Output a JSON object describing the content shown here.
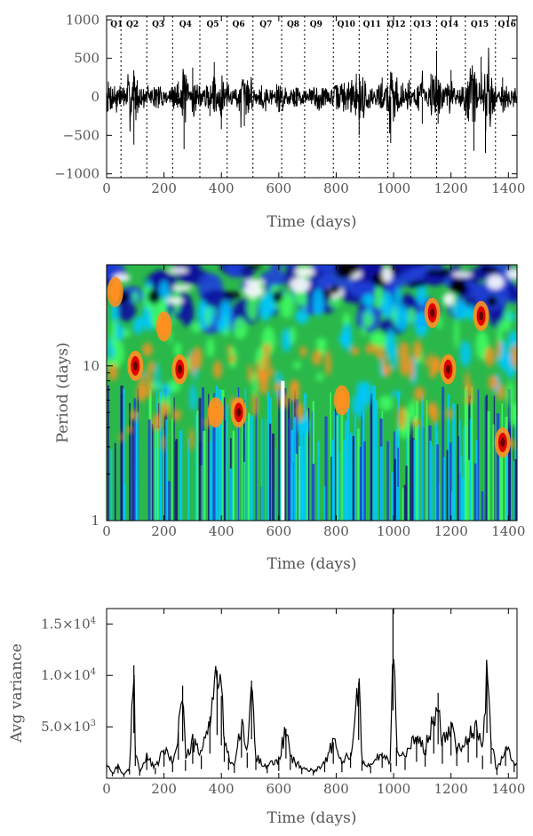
{
  "chart_data": [
    {
      "type": "line",
      "xlabel": "Time (days)",
      "ylabel": "",
      "xlim": [
        0,
        1430
      ],
      "ylim": [
        -1050,
        1050
      ],
      "x_ticks": [
        0,
        200,
        400,
        600,
        800,
        1000,
        1200,
        1400
      ],
      "x_tick_labels": [
        "0",
        "200",
        "400",
        "600",
        "800",
        "1000",
        "1200",
        "1400"
      ],
      "y_ticks": [
        1000,
        500,
        0,
        -500,
        -1000
      ],
      "y_tick_labels": [
        "1000",
        "500",
        "0",
        "−500",
        "−1000"
      ],
      "quarter_boundaries": [
        50,
        140,
        230,
        325,
        420,
        510,
        610,
        690,
        790,
        880,
        980,
        1060,
        1150,
        1250,
        1355
      ],
      "quarters": [
        "Q1",
        "Q2",
        "Q3",
        "Q4",
        "Q5",
        "Q6",
        "Q7",
        "Q8",
        "Q9",
        "Q10",
        "Q11",
        "Q12",
        "Q13",
        "Q14",
        "Q15",
        "Q16"
      ],
      "quarter_label_x": [
        35,
        90,
        180,
        275,
        370,
        460,
        555,
        650,
        730,
        835,
        925,
        1010,
        1100,
        1195,
        1300,
        1395
      ],
      "series": [
        {
          "x": [
            0,
            60,
            95,
            120,
            180,
            250,
            270,
            300,
            360,
            375,
            400,
            420,
            480,
            540,
            600,
            660,
            740,
            800,
            870,
            880,
            960,
            990,
            1050,
            1100,
            1130,
            1150,
            1155,
            1200,
            1280,
            1305,
            1320,
            1380,
            1430
          ],
          "y": [
            250,
            120,
            -620,
            80,
            -150,
            200,
            -680,
            380,
            -250,
            450,
            -420,
            200,
            -380,
            150,
            -200,
            120,
            -180,
            150,
            300,
            -500,
            250,
            -600,
            180,
            -350,
            300,
            600,
            -350,
            350,
            -700,
            520,
            -730,
            250,
            -120
          ]
        }
      ]
    },
    {
      "type": "heatmap",
      "xlabel": "Time (days)",
      "ylabel": "Period (days)",
      "xlim": [
        0,
        1430
      ],
      "ylim": [
        1,
        45
      ],
      "yscale": "log",
      "x_ticks": [
        0,
        200,
        400,
        600,
        800,
        1000,
        1200,
        1400
      ],
      "x_tick_labels": [
        "0",
        "200",
        "400",
        "600",
        "800",
        "1000",
        "1200",
        "1400"
      ],
      "y_ticks": [
        10,
        1
      ],
      "y_tick_labels": [
        "10",
        "1"
      ],
      "colors": {
        "background": "#2ab84a",
        "low": "#2040d8",
        "lower": "#00c8ff",
        "mid": "#40ff60",
        "high": "#ff9020",
        "peak": "#e00000",
        "top": "#000000",
        "gap": "#ffffff"
      },
      "gap_x": [
        614
      ],
      "hotspots": [
        {
          "x": 255,
          "period": 9.5,
          "level": "peak"
        },
        {
          "x": 1190,
          "period": 9.5,
          "level": "peak"
        },
        {
          "x": 1135,
          "period": 22,
          "level": "peak"
        },
        {
          "x": 1305,
          "period": 21,
          "level": "peak"
        },
        {
          "x": 100,
          "period": 10,
          "level": "peak"
        },
        {
          "x": 460,
          "period": 5,
          "level": "peak"
        },
        {
          "x": 1380,
          "period": 3.2,
          "level": "peak"
        },
        {
          "x": 200,
          "period": 18,
          "level": "high"
        },
        {
          "x": 30,
          "period": 30,
          "level": "high"
        },
        {
          "x": 380,
          "period": 5,
          "level": "high"
        },
        {
          "x": 820,
          "period": 6,
          "level": "high"
        }
      ]
    },
    {
      "type": "line",
      "xlabel": "Time (days)",
      "ylabel": "Avg variance",
      "xlim": [
        0,
        1430
      ],
      "ylim": [
        0,
        16500
      ],
      "x_ticks": [
        0,
        200,
        400,
        600,
        800,
        1000,
        1200,
        1400
      ],
      "x_tick_labels": [
        "0",
        "200",
        "400",
        "600",
        "800",
        "1000",
        "1200",
        "1400"
      ],
      "y_ticks": [
        5000,
        10000,
        15000
      ],
      "y_tick_mantissa": [
        "5.0×10",
        "1.0×10",
        "1.5×10"
      ],
      "y_tick_exponent": [
        "3",
        "4",
        "4"
      ],
      "series": [
        {
          "x": [
            0,
            20,
            40,
            60,
            80,
            95,
            100,
            115,
            140,
            170,
            200,
            230,
            250,
            265,
            275,
            300,
            330,
            360,
            385,
            400,
            410,
            425,
            445,
            470,
            490,
            505,
            520,
            560,
            600,
            625,
            640,
            680,
            720,
            760,
            790,
            820,
            850,
            878,
            890,
            920,
            960,
            990,
            998,
            1010,
            1040,
            1080,
            1110,
            1140,
            1155,
            1170,
            1200,
            1220,
            1260,
            1290,
            1310,
            1325,
            1340,
            1360,
            1390,
            1420
          ],
          "y": [
            1500,
            500,
            1200,
            300,
            900,
            11000,
            3000,
            600,
            2000,
            1000,
            2800,
            1500,
            4500,
            9000,
            1800,
            3500,
            2200,
            6000,
            10500,
            8000,
            4000,
            2000,
            1300,
            5000,
            2500,
            9500,
            2000,
            1200,
            1800,
            4800,
            2000,
            1000,
            700,
            1500,
            3500,
            1500,
            2500,
            9300,
            1800,
            1200,
            2500,
            1500,
            16500,
            3000,
            2000,
            4000,
            2800,
            6000,
            8300,
            3500,
            5500,
            3000,
            3800,
            5000,
            2200,
            11000,
            3500,
            800,
            3000,
            1500
          ]
        }
      ]
    }
  ]
}
